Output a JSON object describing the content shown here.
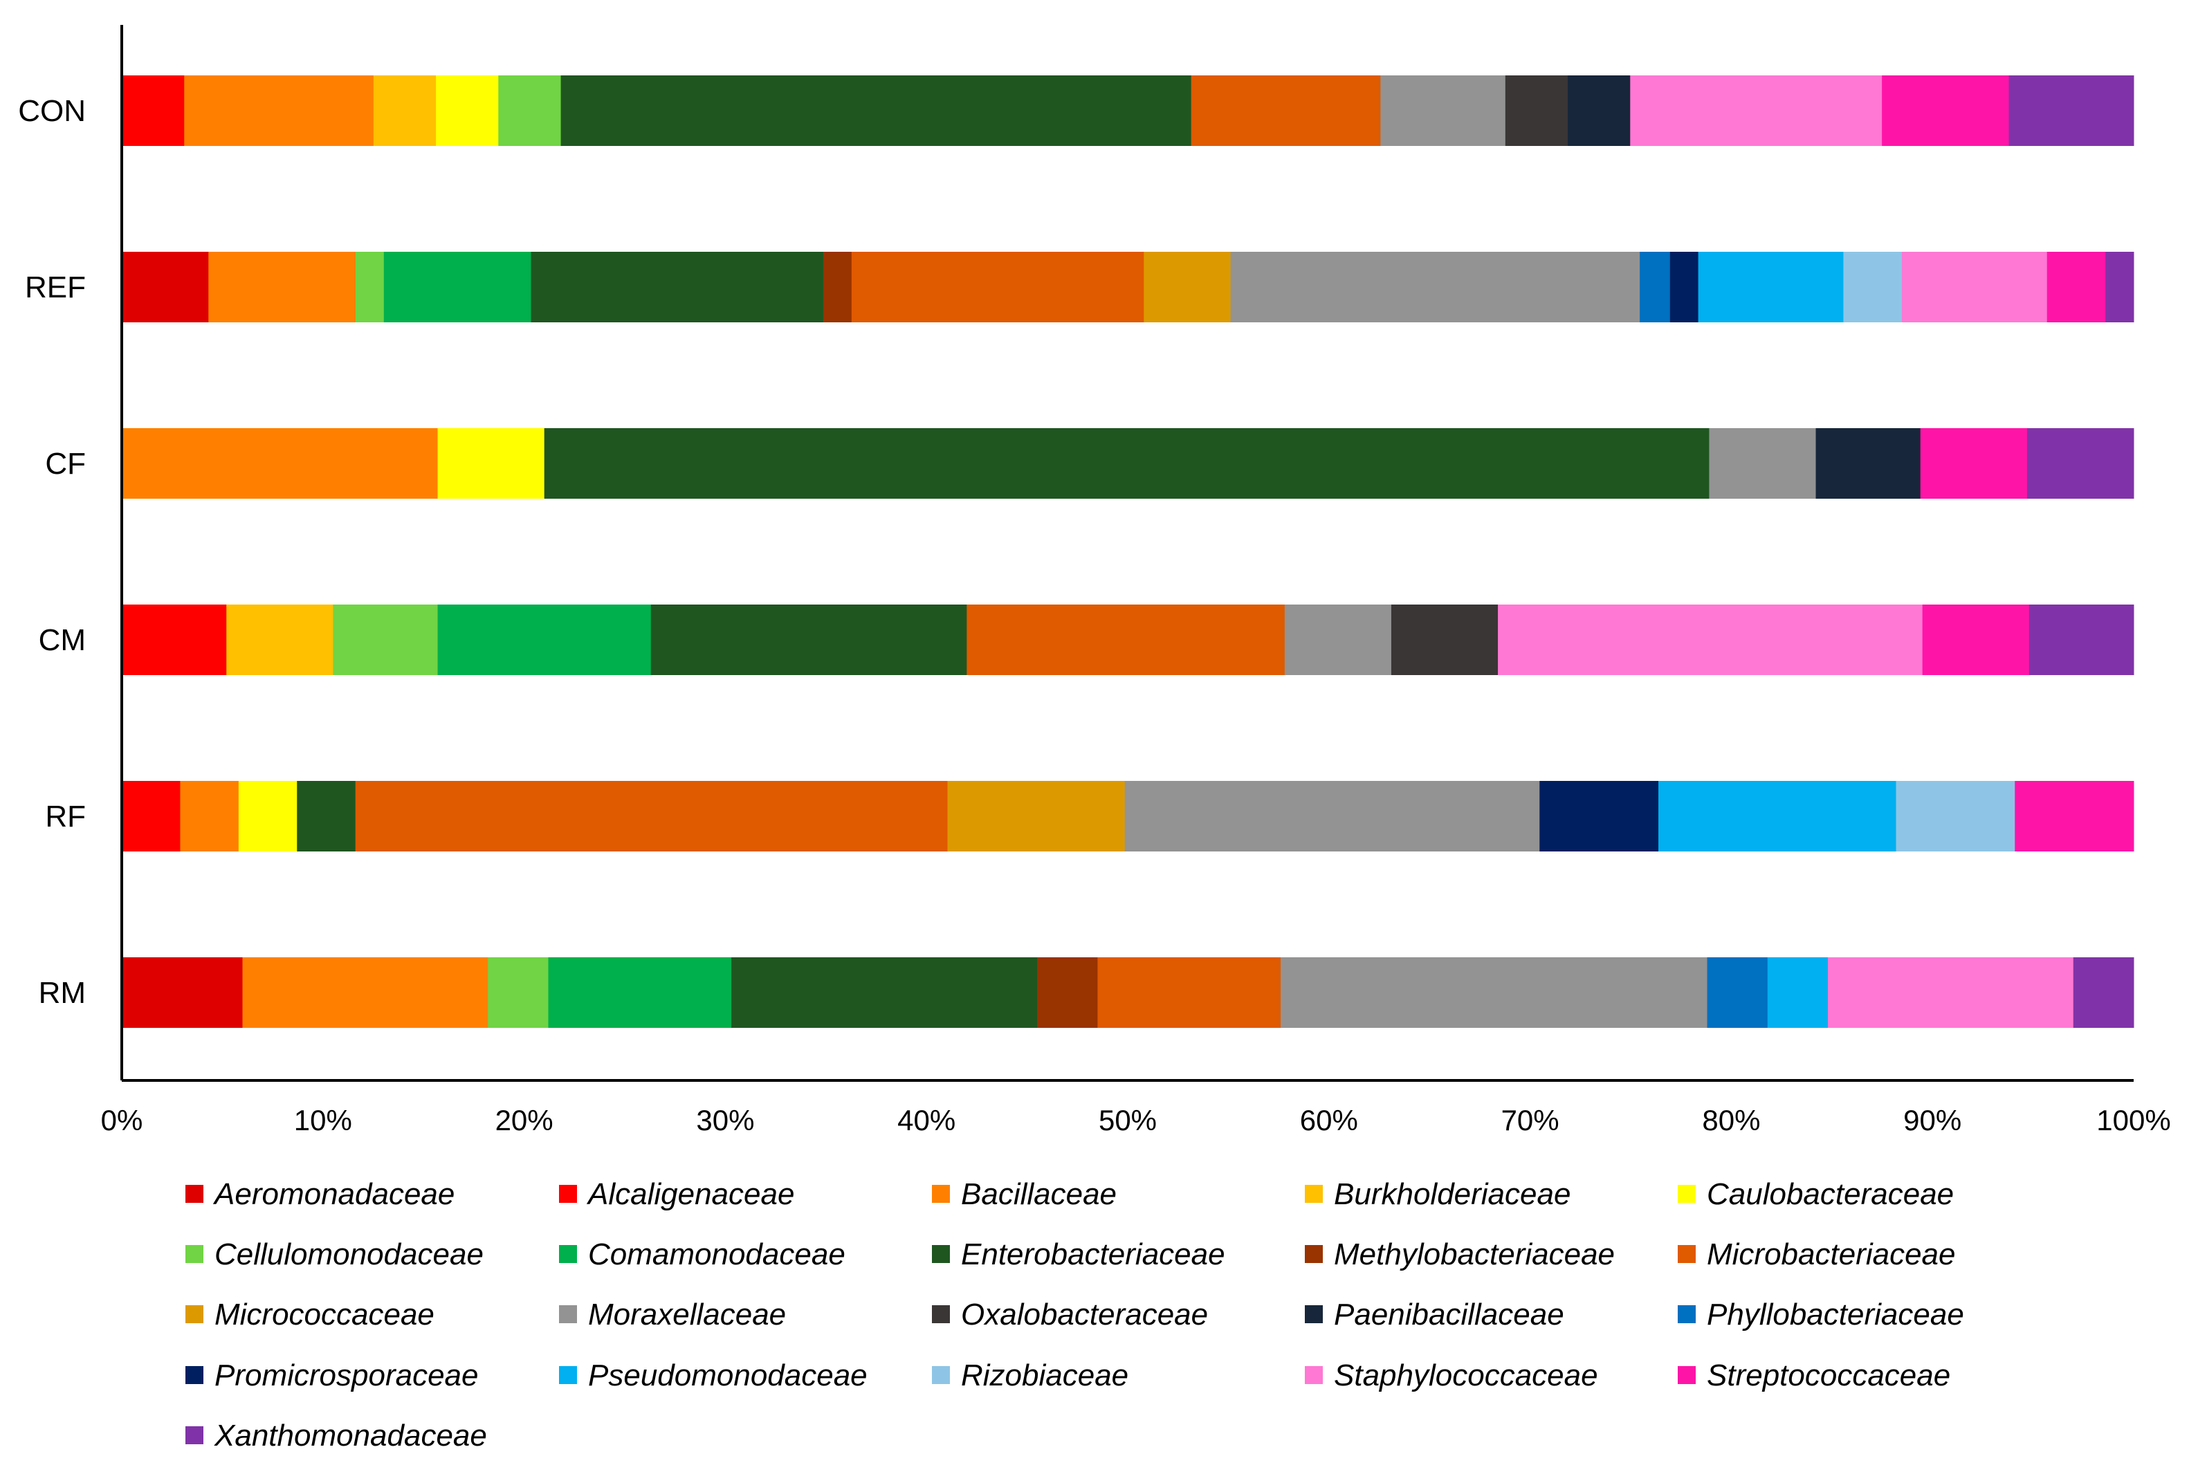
{
  "chart_data": {
    "type": "bar",
    "orientation": "horizontal",
    "stacked": true,
    "title": "",
    "xlabel": "",
    "ylabel": "",
    "xlim": [
      0,
      100
    ],
    "x_ticks": [
      "0%",
      "10%",
      "20%",
      "30%",
      "40%",
      "50%",
      "60%",
      "70%",
      "80%",
      "90%",
      "100%"
    ],
    "categories": [
      "CON",
      "REF",
      "CF",
      "CM",
      "RF",
      "RM"
    ],
    "legend_position": "bottom",
    "series": [
      {
        "name": "Aeromonadaceae",
        "color": "#DE0000",
        "values": [
          0,
          4.3,
          0,
          0,
          0,
          6.0
        ]
      },
      {
        "name": "Alcaligenaceae",
        "color": "#FF0000",
        "values": [
          3.1,
          0,
          0,
          5.2,
          2.9,
          0
        ]
      },
      {
        "name": "Bacillaceae",
        "color": "#FF8000",
        "values": [
          9.4,
          7.3,
          15.7,
          0,
          2.9,
          12.2
        ]
      },
      {
        "name": "Burkholderiaceae",
        "color": "#FFC000",
        "values": [
          3.1,
          0,
          0,
          5.3,
          0,
          0
        ]
      },
      {
        "name": "Caulobacteraceae",
        "color": "#FFFF00",
        "values": [
          3.1,
          0,
          5.3,
          0,
          2.9,
          0
        ]
      },
      {
        "name": "Cellulomonodaceae",
        "color": "#70D444",
        "values": [
          3.1,
          1.4,
          0,
          5.2,
          0,
          3.0
        ]
      },
      {
        "name": "Comamonodaceae",
        "color": "#00B04C",
        "values": [
          0,
          7.3,
          0,
          10.6,
          0,
          9.1
        ]
      },
      {
        "name": "Enterobacteriaceae",
        "color": "#1F5620",
        "values": [
          31.3,
          14.5,
          57.9,
          15.7,
          2.9,
          15.2
        ]
      },
      {
        "name": "Methylobacteriaceae",
        "color": "#993300",
        "values": [
          0,
          1.4,
          0,
          0,
          0,
          3.0
        ]
      },
      {
        "name": "Microbacteriaceae",
        "color": "#E05A00",
        "values": [
          9.4,
          14.5,
          0,
          15.8,
          29.4,
          9.1
        ]
      },
      {
        "name": "Micrococcaceae",
        "color": "#DD9A00",
        "values": [
          0,
          4.3,
          0,
          0,
          8.8,
          0
        ]
      },
      {
        "name": "Moraxellaceae",
        "color": "#939393",
        "values": [
          6.2,
          20.3,
          5.3,
          5.3,
          20.6,
          21.2
        ]
      },
      {
        "name": "Oxalobacteraceae",
        "color": "#3A3636",
        "values": [
          3.1,
          0,
          0,
          5.3,
          0,
          0
        ]
      },
      {
        "name": "Paenibacillaceae",
        "color": "#17263A",
        "values": [
          3.1,
          0,
          5.2,
          0,
          0,
          0
        ]
      },
      {
        "name": "Phyllobacteriaceae",
        "color": "#0070C0",
        "values": [
          0,
          1.5,
          0,
          0,
          0,
          3.0
        ]
      },
      {
        "name": "Promicrosporaceae",
        "color": "#001F60",
        "values": [
          0,
          1.4,
          0,
          0,
          5.9,
          0
        ]
      },
      {
        "name": "Pseudomonodaceae",
        "color": "#00B0F0",
        "values": [
          0,
          7.2,
          0,
          0,
          11.8,
          3.0
        ]
      },
      {
        "name": "Rizobiaceae",
        "color": "#8EC5E6",
        "values": [
          0,
          2.9,
          0,
          0,
          5.9,
          0
        ]
      },
      {
        "name": "Staphylococcaceae",
        "color": "#FF78D4",
        "values": [
          12.5,
          7.2,
          0,
          21.1,
          0,
          12.2
        ]
      },
      {
        "name": "Streptococcaceae",
        "color": "#FF14A8",
        "values": [
          6.3,
          2.9,
          5.3,
          5.3,
          5.9,
          0
        ]
      },
      {
        "name": "Xanthomonadaceae",
        "color": "#8033A8",
        "values": [
          6.2,
          1.4,
          5.3,
          5.2,
          0,
          3.0
        ]
      }
    ]
  }
}
